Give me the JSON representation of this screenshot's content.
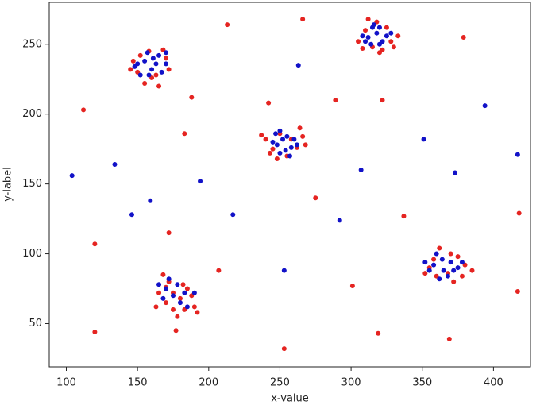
{
  "chart_data": {
    "type": "scatter",
    "xlabel": "x-value",
    "ylabel": "y-label",
    "xlim": [
      88,
      426
    ],
    "ylim": [
      19,
      280
    ],
    "xticks": [
      100,
      150,
      200,
      250,
      300,
      350,
      400
    ],
    "yticks": [
      50,
      100,
      150,
      200,
      250
    ],
    "series": [
      {
        "color": "#e52421",
        "x": [
          150,
          155,
          163,
          170,
          147,
          158,
          165,
          172,
          152,
          160,
          168,
          145,
          305,
          310,
          315,
          322,
          328,
          333,
          318,
          312,
          325,
          308,
          320,
          330,
          240,
          243,
          248,
          255,
          262,
          266,
          264,
          250,
          245,
          258,
          237,
          268,
          165,
          170,
          175,
          180,
          185,
          190,
          172,
          168,
          178,
          182,
          188,
          175,
          163,
          170,
          183,
          192,
          355,
          360,
          368,
          375,
          380,
          385,
          362,
          370,
          358,
          378,
          372,
          352,
          213,
          266,
          379,
          112,
          188,
          242,
          289,
          322,
          183,
          275,
          337,
          418,
          172,
          120,
          207,
          301,
          417,
          120,
          177,
          253,
          319,
          369
        ],
        "values": [
          230,
          222,
          228,
          240,
          238,
          245,
          220,
          232,
          242,
          226,
          246,
          232,
          252,
          260,
          248,
          246,
          252,
          256,
          266,
          268,
          262,
          247,
          244,
          248,
          182,
          172,
          168,
          170,
          176,
          184,
          190,
          186,
          175,
          182,
          185,
          178,
          72,
          65,
          60,
          68,
          75,
          62,
          80,
          85,
          55,
          78,
          70,
          72,
          62,
          76,
          60,
          58,
          90,
          84,
          86,
          98,
          92,
          88,
          104,
          100,
          96,
          84,
          80,
          86,
          264,
          268,
          255,
          203,
          212,
          208,
          210,
          210,
          186,
          140,
          127,
          129,
          115,
          107,
          88,
          77,
          73,
          44,
          45,
          32,
          43,
          39
        ]
      },
      {
        "color": "#1212c8",
        "x": [
          155,
          160,
          165,
          158,
          150,
          163,
          170,
          157,
          152,
          167,
          161,
          170,
          148,
          312,
          318,
          322,
          315,
          308,
          325,
          320,
          316,
          310,
          328,
          314,
          320,
          248,
          252,
          258,
          255,
          250,
          245,
          260,
          254,
          262,
          247,
          257,
          250,
          175,
          170,
          180,
          168,
          185,
          178,
          190,
          165,
          172,
          183,
          358,
          365,
          370,
          362,
          375,
          360,
          368,
          355,
          372,
          364,
          378,
          352,
          263,
          394,
          351,
          307,
          373,
          417,
          134,
          104,
          194,
          159,
          146,
          217,
          292,
          253
        ],
        "values": [
          238,
          232,
          242,
          228,
          236,
          236,
          244,
          244,
          228,
          230,
          240,
          236,
          234,
          255,
          258,
          252,
          262,
          256,
          256,
          250,
          264,
          252,
          258,
          250,
          262,
          178,
          182,
          176,
          184,
          172,
          180,
          182,
          174,
          178,
          186,
          170,
          188,
          70,
          75,
          65,
          68,
          62,
          78,
          72,
          78,
          82,
          72,
          92,
          88,
          94,
          82,
          90,
          100,
          84,
          88,
          88,
          96,
          94,
          94,
          235,
          206,
          182,
          160,
          158,
          171,
          164,
          156,
          152,
          138,
          128,
          128,
          124,
          88
        ]
      }
    ]
  }
}
